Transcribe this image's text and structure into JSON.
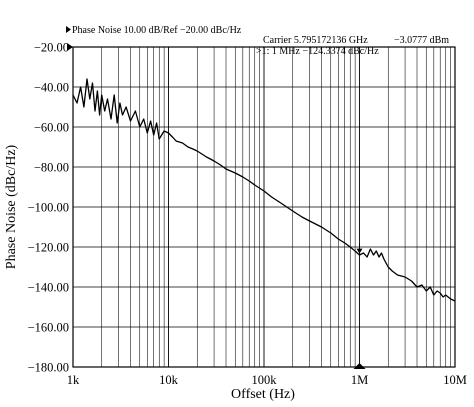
{
  "header": {
    "scale_text": "Phase Noise 10.00 dB/Ref −20.00 dBc/Hz",
    "carrier_label": "Carrier 5.795172136 GHz",
    "carrier_power": "−3.0777 dBm",
    "marker_text": ">1:  1 MHz   −124.3374 dBc/Hz"
  },
  "chart_data": {
    "type": "line",
    "title": "",
    "xlabel": "Offset (Hz)",
    "ylabel": "Phase Noise (dBc/Hz)",
    "x_scale": "log",
    "xlim": [
      1000,
      10000000
    ],
    "ylim": [
      -180,
      -20
    ],
    "grid": true,
    "x_ticks": [
      {
        "value": 1000,
        "label": "1k"
      },
      {
        "value": 10000,
        "label": "10k"
      },
      {
        "value": 100000,
        "label": "100k"
      },
      {
        "value": 1000000,
        "label": "1M"
      },
      {
        "value": 10000000,
        "label": "10M"
      }
    ],
    "y_ticks": [
      {
        "value": -20,
        "label": "−20.00"
      },
      {
        "value": -40,
        "label": "−40.00"
      },
      {
        "value": -60,
        "label": "−60.00"
      },
      {
        "value": -80,
        "label": "−80.00"
      },
      {
        "value": -100,
        "label": "−100.00"
      },
      {
        "value": -120,
        "label": "−120.00"
      },
      {
        "value": -140,
        "label": "−140.00"
      },
      {
        "value": -160,
        "label": "−160.00"
      },
      {
        "value": -180,
        "label": "−180.00"
      }
    ],
    "series": [
      {
        "color": "#000000",
        "x": [
          1000,
          1100,
          1200,
          1300,
          1400,
          1500,
          1600,
          1700,
          1800,
          1900,
          2000,
          2150,
          2300,
          2500,
          2700,
          2900,
          3100,
          3300,
          3600,
          4000,
          4500,
          5000,
          5500,
          6000,
          6500,
          7000,
          7500,
          8000,
          9000,
          10000,
          11000,
          12000,
          14000,
          16000,
          18000,
          20000,
          25000,
          30000,
          35000,
          40000,
          50000,
          60000,
          70000,
          80000,
          100000,
          120000,
          150000,
          200000,
          250000,
          300000,
          400000,
          500000,
          600000,
          700000,
          800000,
          900000,
          1000000,
          1100000,
          1200000,
          1300000,
          1400000,
          1500000,
          1600000,
          1700000,
          1800000,
          2000000,
          2200000,
          2500000,
          3000000,
          3500000,
          4000000,
          4500000,
          5000000,
          5500000,
          6000000,
          6500000,
          7000000,
          7500000,
          8000000,
          9000000,
          10000000
        ],
        "y": [
          -44,
          -48,
          -40,
          -50,
          -36,
          -46,
          -38,
          -52,
          -42,
          -54,
          -44,
          -52,
          -46,
          -56,
          -44,
          -58,
          -48,
          -54,
          -50,
          -57,
          -52,
          -60,
          -56,
          -63,
          -57,
          -64,
          -58,
          -66,
          -62,
          -63,
          -65,
          -67,
          -68,
          -70,
          -71,
          -72,
          -75,
          -77,
          -79,
          -81,
          -83,
          -85,
          -87,
          -89,
          -92,
          -95,
          -98,
          -102,
          -105,
          -107,
          -110,
          -113,
          -116,
          -118,
          -120,
          -122,
          -124,
          -123,
          -125,
          -121,
          -124,
          -122,
          -125,
          -123,
          -126,
          -130,
          -132,
          -134,
          -135,
          -137,
          -140,
          -139,
          -142,
          -140,
          -144,
          -142,
          -143,
          -145,
          -144,
          -146,
          -147
        ]
      }
    ],
    "markers": [
      {
        "x": 1000000,
        "y": -124.3374
      }
    ]
  }
}
